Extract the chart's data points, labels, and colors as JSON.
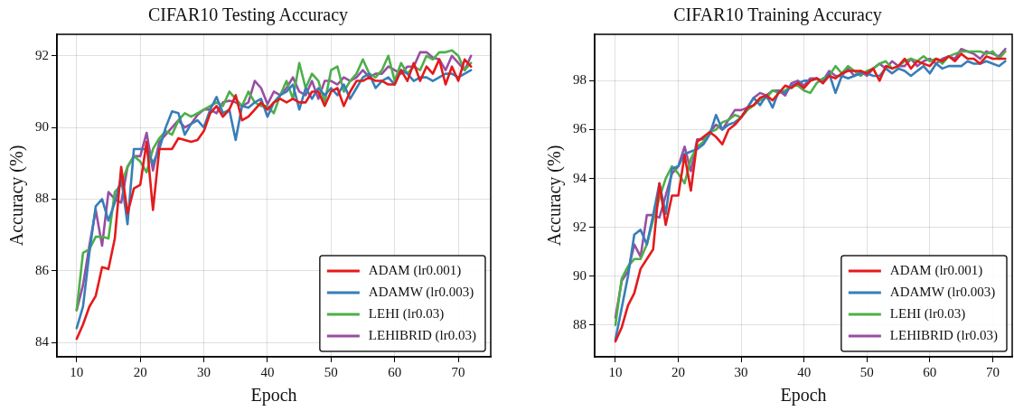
{
  "chart_data": [
    {
      "type": "line",
      "title": "CIFAR10 Testing Accuracy",
      "xlabel": "Epoch",
      "ylabel": "Accuracy (%)",
      "x": [
        10,
        11,
        12,
        13,
        14,
        15,
        16,
        17,
        18,
        19,
        20,
        21,
        22,
        23,
        24,
        25,
        26,
        27,
        28,
        29,
        30,
        31,
        32,
        33,
        34,
        35,
        36,
        37,
        38,
        39,
        40,
        41,
        42,
        43,
        44,
        45,
        46,
        47,
        48,
        49,
        50,
        51,
        52,
        53,
        54,
        55,
        56,
        57,
        58,
        59,
        60,
        61,
        62,
        63,
        64,
        65,
        66,
        67,
        68,
        69,
        70,
        71,
        72
      ],
      "series": [
        {
          "name": "ADAM (lr0.001)",
          "color": "#e41a1c",
          "values": [
            84.1,
            84.5,
            85.0,
            85.3,
            86.1,
            86.05,
            86.9,
            88.9,
            87.6,
            88.3,
            88.4,
            89.6,
            87.7,
            89.4,
            89.4,
            89.4,
            89.7,
            89.65,
            89.6,
            89.65,
            89.9,
            90.4,
            90.6,
            90.3,
            90.5,
            90.9,
            90.2,
            90.3,
            90.5,
            90.7,
            90.5,
            90.7,
            90.8,
            90.7,
            90.8,
            90.7,
            90.7,
            91.0,
            91.0,
            90.6,
            91.0,
            91.1,
            90.6,
            91.0,
            91.3,
            91.3,
            91.4,
            91.3,
            91.3,
            91.2,
            91.2,
            91.6,
            91.3,
            91.8,
            91.3,
            91.7,
            91.5,
            91.9,
            91.2,
            91.7,
            91.3,
            91.9,
            91.7
          ]
        },
        {
          "name": "ADAMW (lr0.003)",
          "color": "#377eb8",
          "values": [
            84.4,
            85.0,
            86.5,
            87.8,
            88.0,
            87.4,
            87.9,
            88.6,
            87.3,
            89.4,
            89.4,
            89.4,
            89.0,
            89.4,
            90.0,
            90.45,
            90.4,
            89.8,
            90.1,
            90.2,
            90.0,
            90.5,
            90.85,
            90.4,
            90.5,
            89.65,
            90.6,
            90.55,
            90.7,
            90.8,
            90.3,
            90.7,
            90.9,
            91.0,
            91.2,
            90.5,
            91.1,
            90.8,
            91.1,
            90.9,
            91.1,
            90.9,
            91.2,
            90.8,
            91.1,
            91.4,
            91.5,
            91.1,
            91.3,
            91.4,
            91.2,
            91.6,
            91.5,
            91.3,
            91.4,
            91.4,
            91.3,
            91.4,
            91.5,
            91.5,
            91.4,
            91.5,
            91.6
          ]
        },
        {
          "name": "LEHI (lr0.03)",
          "color": "#4daf4a",
          "values": [
            84.9,
            86.5,
            86.6,
            86.95,
            86.95,
            86.9,
            88.2,
            88.4,
            88.9,
            89.2,
            89.05,
            88.75,
            89.4,
            89.7,
            89.9,
            89.8,
            90.2,
            90.4,
            90.3,
            90.4,
            90.5,
            90.6,
            90.7,
            90.6,
            91.0,
            90.8,
            90.6,
            91.0,
            90.7,
            90.6,
            90.6,
            90.4,
            90.9,
            91.3,
            90.8,
            91.8,
            91.1,
            91.5,
            91.3,
            90.7,
            91.6,
            91.7,
            91.0,
            91.3,
            91.5,
            91.9,
            91.5,
            91.4,
            91.6,
            92.0,
            91.3,
            91.8,
            91.5,
            91.7,
            91.6,
            92.0,
            91.9,
            92.1,
            92.1,
            92.15,
            92.0,
            91.6,
            91.8
          ]
        },
        {
          "name": "LEHIBRID (lr0.03)",
          "color": "#984ea3",
          "values": [
            84.9,
            85.6,
            86.7,
            87.7,
            86.7,
            88.2,
            88.0,
            87.9,
            88.9,
            89.2,
            89.2,
            89.85,
            88.8,
            89.6,
            89.8,
            90.0,
            90.2,
            90.0,
            90.1,
            90.35,
            90.5,
            90.5,
            90.4,
            90.7,
            90.75,
            90.7,
            90.6,
            90.7,
            91.3,
            91.1,
            90.65,
            91.0,
            90.9,
            91.1,
            91.4,
            91.0,
            90.9,
            91.3,
            90.8,
            91.3,
            91.3,
            91.2,
            91.4,
            91.3,
            91.4,
            91.6,
            91.4,
            91.5,
            91.5,
            91.7,
            91.6,
            91.5,
            91.7,
            91.7,
            92.1,
            92.1,
            91.95,
            91.9,
            91.6,
            92.0,
            91.8,
            91.6,
            92.0
          ]
        }
      ],
      "xlim": [
        6.9,
        75.1
      ],
      "ylim": [
        83.6,
        92.6
      ],
      "xticks": [
        10,
        20,
        30,
        40,
        50,
        60,
        70
      ],
      "yticks": [
        84,
        86,
        88,
        90,
        92
      ],
      "grid": true,
      "legend": "bottom right",
      "marker": "none",
      "line_style": "solid"
    },
    {
      "type": "line",
      "title": "CIFAR10 Training Accuracy",
      "xlabel": "Epoch",
      "ylabel": "Accuracy (%)",
      "x": [
        10,
        11,
        12,
        13,
        14,
        15,
        16,
        17,
        18,
        19,
        20,
        21,
        22,
        23,
        24,
        25,
        26,
        27,
        28,
        29,
        30,
        31,
        32,
        33,
        34,
        35,
        36,
        37,
        38,
        39,
        40,
        41,
        42,
        43,
        44,
        45,
        46,
        47,
        48,
        49,
        50,
        51,
        52,
        53,
        54,
        55,
        56,
        57,
        58,
        59,
        60,
        61,
        62,
        63,
        64,
        65,
        66,
        67,
        68,
        69,
        70,
        71,
        72
      ],
      "series": [
        {
          "name": "ADAM (lr0.001)",
          "color": "#e41a1c",
          "values": [
            87.33,
            87.9,
            88.8,
            89.3,
            90.3,
            90.7,
            91.1,
            93.8,
            92.1,
            93.3,
            93.3,
            94.95,
            93.5,
            95.5,
            95.7,
            95.9,
            95.7,
            95.4,
            96.0,
            96.2,
            96.5,
            96.9,
            97.0,
            97.3,
            97.4,
            97.2,
            97.5,
            97.8,
            97.7,
            97.9,
            97.7,
            98.0,
            98.1,
            97.9,
            98.2,
            98.1,
            98.3,
            98.4,
            98.4,
            98.4,
            98.3,
            98.5,
            98.0,
            98.6,
            98.5,
            98.6,
            98.9,
            98.5,
            98.8,
            98.7,
            98.6,
            98.9,
            98.8,
            99.0,
            98.8,
            99.1,
            98.9,
            98.9,
            98.7,
            99.0,
            98.9,
            98.9,
            98.9
          ]
        },
        {
          "name": "ADAMW (lr0.003)",
          "color": "#377eb8",
          "values": [
            87.4,
            88.7,
            90.0,
            91.7,
            91.9,
            91.3,
            92.5,
            93.8,
            92.55,
            94.4,
            94.5,
            95.0,
            95.1,
            95.2,
            95.4,
            95.8,
            96.6,
            96.0,
            96.2,
            96.3,
            96.5,
            96.9,
            97.3,
            97.0,
            97.4,
            96.9,
            97.6,
            97.5,
            97.8,
            97.9,
            98.0,
            98.0,
            98.1,
            97.9,
            98.3,
            97.5,
            98.2,
            98.1,
            98.2,
            98.3,
            98.3,
            98.2,
            98.2,
            98.5,
            98.3,
            98.5,
            98.4,
            98.2,
            98.4,
            98.6,
            98.3,
            98.7,
            98.5,
            98.6,
            98.6,
            98.6,
            98.8,
            98.7,
            98.7,
            98.8,
            98.7,
            98.6,
            98.8
          ]
        },
        {
          "name": "LEHI (lr0.03)",
          "color": "#4daf4a",
          "values": [
            88.0,
            89.9,
            90.4,
            90.7,
            90.7,
            91.3,
            92.3,
            93.2,
            94.0,
            94.5,
            94.2,
            93.8,
            94.8,
            95.3,
            95.5,
            95.9,
            96.0,
            96.3,
            96.4,
            96.6,
            96.5,
            96.8,
            97.0,
            97.2,
            97.3,
            97.6,
            97.5,
            97.6,
            97.8,
            97.8,
            97.6,
            97.5,
            97.9,
            98.1,
            98.2,
            98.6,
            98.3,
            98.6,
            98.4,
            98.2,
            98.4,
            98.5,
            98.7,
            98.8,
            98.5,
            98.6,
            98.8,
            98.9,
            98.8,
            99.0,
            98.8,
            98.9,
            98.7,
            99.0,
            99.1,
            99.2,
            99.2,
            99.2,
            99.2,
            99.1,
            99.2,
            98.9,
            99.2
          ]
        },
        {
          "name": "LEHIBRID (lr0.03)",
          "color": "#984ea3",
          "values": [
            88.3,
            89.8,
            90.2,
            91.3,
            90.8,
            92.5,
            92.5,
            92.4,
            93.3,
            94.2,
            94.5,
            95.3,
            94.3,
            95.6,
            95.6,
            95.9,
            96.2,
            96.0,
            96.4,
            96.8,
            96.8,
            96.9,
            97.3,
            97.5,
            97.4,
            97.6,
            97.6,
            97.4,
            97.9,
            98.0,
            97.8,
            98.1,
            98.1,
            98.0,
            98.4,
            98.2,
            98.2,
            98.5,
            98.2,
            98.4,
            98.2,
            98.5,
            98.7,
            98.5,
            98.8,
            98.6,
            98.6,
            98.9,
            98.6,
            98.8,
            98.9,
            98.7,
            98.9,
            99.0,
            98.9,
            99.3,
            99.2,
            99.1,
            98.9,
            99.2,
            99.1,
            99.0,
            99.3
          ]
        }
      ],
      "xlim": [
        6.7,
        73.1
      ],
      "ylim": [
        86.7,
        99.9
      ],
      "xticks": [
        10,
        20,
        30,
        40,
        50,
        60,
        70
      ],
      "yticks": [
        88,
        90,
        92,
        94,
        96,
        98
      ],
      "grid": true,
      "legend": "bottom right",
      "marker": "none",
      "line_style": "solid"
    }
  ]
}
